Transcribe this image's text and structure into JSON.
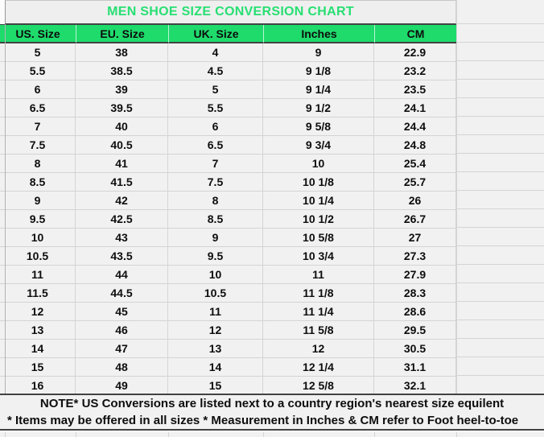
{
  "chart_data": {
    "type": "table",
    "title": "MEN SHOE SIZE CONVERSION CHART",
    "columns": [
      "US. Size",
      "EU. Size",
      "UK. Size",
      "Inches",
      "CM"
    ],
    "rows": [
      [
        "5",
        "38",
        "4",
        "9",
        "22.9"
      ],
      [
        "5.5",
        "38.5",
        "4.5",
        "9 1/8",
        "23.2"
      ],
      [
        "6",
        "39",
        "5",
        "9 1/4",
        "23.5"
      ],
      [
        "6.5",
        "39.5",
        "5.5",
        "9 1/2",
        "24.1"
      ],
      [
        "7",
        "40",
        "6",
        "9 5/8",
        "24.4"
      ],
      [
        "7.5",
        "40.5",
        "6.5",
        "9 3/4",
        "24.8"
      ],
      [
        "8",
        "41",
        "7",
        "10",
        "25.4"
      ],
      [
        "8.5",
        "41.5",
        "7.5",
        "10 1/8",
        "25.7"
      ],
      [
        "9",
        "42",
        "8",
        "10 1/4",
        "26"
      ],
      [
        "9.5",
        "42.5",
        "8.5",
        "10 1/2",
        "26.7"
      ],
      [
        "10",
        "43",
        "9",
        "10 5/8",
        "27"
      ],
      [
        "10.5",
        "43.5",
        "9.5",
        "10 3/4",
        "27.3"
      ],
      [
        "11",
        "44",
        "10",
        "11",
        "27.9"
      ],
      [
        "11.5",
        "44.5",
        "10.5",
        "11 1/8",
        "28.3"
      ],
      [
        "12",
        "45",
        "11",
        "11 1/4",
        "28.6"
      ],
      [
        "13",
        "46",
        "12",
        "11 5/8",
        "29.5"
      ],
      [
        "14",
        "47",
        "13",
        "12",
        "30.5"
      ],
      [
        "15",
        "48",
        "14",
        "12 1/4",
        "31.1"
      ],
      [
        "16",
        "49",
        "15",
        "12 5/8",
        "32.1"
      ]
    ],
    "footnotes": [
      "NOTE* US Conversions are listed next to a country region's nearest size equilent",
      "* Items may be offered in all sizes * Measurement in Inches & CM refer to Foot heel-to-toe"
    ],
    "layout_hints": {
      "grid": "on",
      "header_position": "top",
      "empty_trailing_column": true
    }
  },
  "colors": {
    "header_fill": "#1EDB6C",
    "title_text": "#27DF72",
    "cell_background": "#F1F1F1",
    "grid_line": "#D4D4D4",
    "dark_border": "#424242",
    "text": "#0D0D0D"
  }
}
